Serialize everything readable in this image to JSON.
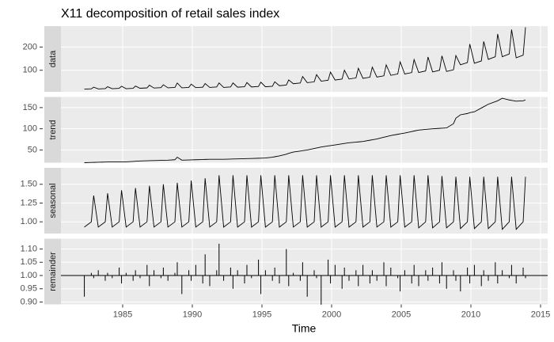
{
  "chart_data": {
    "type": "facets",
    "title": "X11 decomposition of retail sales index",
    "x_label": "Time",
    "xlim": [
      1980.57,
      2015.51
    ],
    "xticks": [
      1985,
      1990,
      1995,
      2000,
      2005,
      2010,
      2015
    ],
    "x": [
      1982.25,
      1982.75,
      1982.92,
      1983.25,
      1983.75,
      1983.92,
      1984.25,
      1984.75,
      1984.92,
      1985.25,
      1985.75,
      1985.92,
      1986.25,
      1986.75,
      1986.92,
      1987.25,
      1987.75,
      1987.92,
      1988.25,
      1988.75,
      1988.92,
      1989.25,
      1989.75,
      1989.92,
      1990.25,
      1990.75,
      1990.92,
      1991.25,
      1991.75,
      1991.92,
      1992.25,
      1992.75,
      1992.92,
      1993.25,
      1993.75,
      1993.92,
      1994.25,
      1994.75,
      1994.92,
      1995.25,
      1995.75,
      1995.92,
      1996.25,
      1996.75,
      1996.92,
      1997.25,
      1997.75,
      1997.92,
      1998.25,
      1998.75,
      1998.92,
      1999.25,
      1999.75,
      1999.92,
      2000.25,
      2000.75,
      2000.92,
      2001.25,
      2001.75,
      2001.92,
      2002.25,
      2002.75,
      2002.92,
      2003.25,
      2003.75,
      2003.92,
      2004.25,
      2004.75,
      2004.92,
      2005.25,
      2005.75,
      2005.92,
      2006.25,
      2006.75,
      2006.92,
      2007.25,
      2007.75,
      2007.92,
      2008.25,
      2008.75,
      2008.92,
      2009.25,
      2009.75,
      2009.92,
      2010.25,
      2010.75,
      2010.92,
      2011.25,
      2011.75,
      2011.92,
      2012.25,
      2012.75,
      2012.92,
      2013.25,
      2013.75,
      2013.92
    ],
    "panel_color": "#ebebeb",
    "strip_color": "#d9d9d9",
    "grid": true,
    "line_color": "#000000",
    "facets": [
      {
        "type": "line",
        "strip": "data",
        "ylim": [
          7,
          290
        ],
        "yticks": [
          100,
          200
        ],
        "values": [
          18.6,
          20,
          27,
          19.5,
          21,
          29,
          20.5,
          22,
          31.2,
          20.5,
          22,
          31.9,
          22.3,
          24,
          35.5,
          23.3,
          25,
          37.5,
          24.2,
          26,
          45,
          24.2,
          26,
          40.3,
          25.1,
          27,
          42.7,
          26,
          28,
          45.4,
          26,
          28,
          45.4,
          27,
          29,
          47,
          27.9,
          30,
          48.6,
          28.8,
          31,
          50.2,
          33.5,
          36,
          58.3,
          41.9,
          45,
          72.9,
          46.5,
          50,
          81,
          53,
          57,
          92.3,
          57.7,
          62,
          100.4,
          62.3,
          67,
          108.5,
          65.1,
          70,
          113.4,
          70.7,
          76,
          123.1,
          78.1,
          84,
          136.1,
          83.7,
          90,
          145.8,
          90.2,
          97,
          157.1,
          93,
          100,
          162,
          94.9,
          102,
          163.2,
          123.7,
          133,
          212.8,
          130.2,
          140,
          224,
          146.9,
          158,
          256,
          158.1,
          170,
          275.4,
          153.5,
          165,
          285
        ]
      },
      {
        "type": "line",
        "strip": "trend",
        "ylim": [
          20,
          175
        ],
        "yticks": [
          50,
          100,
          150
        ],
        "values": [
          20,
          20.5,
          20.7,
          21,
          21.5,
          21.7,
          22,
          22,
          22,
          22,
          23,
          23.3,
          24,
          24.5,
          24.7,
          25,
          25.5,
          25.7,
          26,
          27,
          33,
          26,
          26.5,
          26.7,
          27,
          27.5,
          27.7,
          28,
          28,
          28,
          28,
          28.5,
          28.7,
          29,
          29.5,
          29.7,
          30,
          30.5,
          30.7,
          31,
          33,
          34,
          36,
          40,
          42,
          45,
          47.5,
          48.3,
          50,
          53.5,
          54.7,
          57,
          59.5,
          60.3,
          62,
          64.5,
          65.3,
          67,
          68.5,
          69,
          70,
          73,
          74,
          76,
          80,
          81.3,
          84,
          87,
          88,
          90,
          93.5,
          94.7,
          97,
          98.5,
          99,
          100,
          101,
          101.3,
          102,
          112,
          125,
          133,
          136,
          138,
          140,
          149,
          152,
          158,
          164,
          166,
          172,
          168,
          167,
          165,
          166,
          168
        ]
      },
      {
        "type": "line",
        "strip": "seasonal",
        "ylim": [
          0.844,
          1.719
        ],
        "yticks": [
          {
            "value": 1,
            "label": "1.00"
          },
          {
            "value": 1.25,
            "label": "1.25"
          },
          {
            "value": 1.5,
            "label": "1.50"
          }
        ],
        "values": [
          0.93,
          1.0,
          1.35,
          0.93,
          1.0,
          1.38,
          0.93,
          1.0,
          1.42,
          0.93,
          1.0,
          1.45,
          0.93,
          1.0,
          1.48,
          0.93,
          1.0,
          1.5,
          0.93,
          1.0,
          1.52,
          0.93,
          1.0,
          1.55,
          0.93,
          1.0,
          1.58,
          0.93,
          1.0,
          1.62,
          0.93,
          1.0,
          1.62,
          0.93,
          1.0,
          1.62,
          0.93,
          1.0,
          1.62,
          0.93,
          1.0,
          1.62,
          0.93,
          1.0,
          1.62,
          0.93,
          1.0,
          1.62,
          0.93,
          1.0,
          1.62,
          0.93,
          1.0,
          1.62,
          0.93,
          1.0,
          1.62,
          0.93,
          1.0,
          1.62,
          0.93,
          1.0,
          1.62,
          0.93,
          1.0,
          1.62,
          0.93,
          1.0,
          1.62,
          0.93,
          1.0,
          1.62,
          0.92,
          1.0,
          1.62,
          0.92,
          1.0,
          1.61,
          0.92,
          1.0,
          1.6,
          0.91,
          1.0,
          1.6,
          0.91,
          1.0,
          1.6,
          0.91,
          1.0,
          1.6,
          0.9,
          1.0,
          1.6,
          0.9,
          1.0,
          1.6
        ]
      },
      {
        "type": "bar",
        "strip": "remainder",
        "ylim": [
          0.891,
          1.139
        ],
        "hline": 1,
        "yticks": [
          {
            "value": 0.9,
            "label": "0.90"
          },
          {
            "value": 0.95,
            "label": "0.95"
          },
          {
            "value": 1,
            "label": "1.00"
          },
          {
            "value": 1.05,
            "label": "1.05"
          },
          {
            "value": 1.1,
            "label": "1.10"
          }
        ],
        "values": [
          0.92,
          1.01,
          0.99,
          1.02,
          0.98,
          1.01,
          0.99,
          1.03,
          0.97,
          1.01,
          0.98,
          1.02,
          0.99,
          1.04,
          0.96,
          1.02,
          0.99,
          1.03,
          0.98,
          1.01,
          1.05,
          0.93,
          1.02,
          0.98,
          1.04,
          0.97,
          1.08,
          0.96,
          1.02,
          1.12,
          0.98,
          1.03,
          0.95,
          1.02,
          0.97,
          1.04,
          0.99,
          1.06,
          0.93,
          1.02,
          0.98,
          1.03,
          0.97,
          1.1,
          0.96,
          1.01,
          0.98,
          1.05,
          0.92,
          1.02,
          0.99,
          0.89,
          1.06,
          0.97,
          1.04,
          0.95,
          1.03,
          0.98,
          1.02,
          0.96,
          1.04,
          0.97,
          1.02,
          0.98,
          1.05,
          0.96,
          1.03,
          0.99,
          0.94,
          1.02,
          0.97,
          1.04,
          0.96,
          1.02,
          0.98,
          1.03,
          0.97,
          1.05,
          0.95,
          1.02,
          0.98,
          0.94,
          1.03,
          0.97,
          1.04,
          0.96,
          1.02,
          0.98,
          1.05,
          0.97,
          1.02,
          0.99,
          1.04,
          0.97,
          1.03,
          0.99
        ]
      }
    ]
  }
}
